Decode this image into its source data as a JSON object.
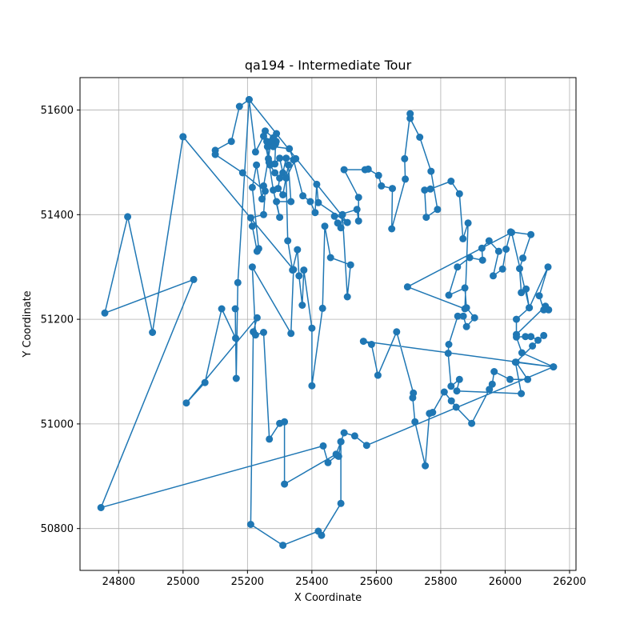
{
  "chart_data": {
    "type": "line",
    "title": "qa194 - Intermediate Tour",
    "xlabel": "X Coordinate",
    "ylabel": "Y Coordinate",
    "xlim": [
      24680,
      26220
    ],
    "ylim": [
      50720,
      51662
    ],
    "xticks": [
      24800,
      25000,
      25200,
      25400,
      25600,
      25800,
      26000,
      26200
    ],
    "yticks": [
      50800,
      51000,
      51200,
      51400,
      51600
    ],
    "grid": true,
    "color": "#1f77b4",
    "series": [
      {
        "marker": "circle",
        "points": [
          [
            25000,
            51549
          ],
          [
            24905,
            51175
          ],
          [
            24828,
            51396
          ],
          [
            24757,
            51212
          ],
          [
            25033,
            51276
          ],
          [
            24745,
            50840
          ],
          [
            25435,
            50958
          ],
          [
            25450,
            50926
          ],
          [
            25478,
            50940
          ],
          [
            25483,
            50938
          ],
          [
            25490,
            50966
          ],
          [
            25500,
            50983
          ],
          [
            25533,
            50977
          ],
          [
            25570,
            50959
          ],
          [
            26150,
            51109
          ],
          [
            26052,
            51136
          ],
          [
            26035,
            51166
          ],
          [
            26063,
            51167
          ],
          [
            26080,
            51167
          ],
          [
            26102,
            51160
          ],
          [
            26120,
            51169
          ],
          [
            26085,
            51149
          ],
          [
            26034,
            51118
          ],
          [
            26070,
            51085
          ],
          [
            26015,
            51085
          ],
          [
            25966,
            51100
          ],
          [
            25960,
            51076
          ],
          [
            25951,
            51066
          ],
          [
            25896,
            51001
          ],
          [
            25848,
            51032
          ],
          [
            25833,
            51044
          ],
          [
            25811,
            51061
          ],
          [
            25775,
            51022
          ],
          [
            25765,
            51020
          ],
          [
            25752,
            50920
          ],
          [
            25720,
            51004
          ],
          [
            25713,
            51050
          ],
          [
            25715,
            51059
          ],
          [
            25663,
            51176
          ],
          [
            25605,
            51093
          ],
          [
            25585,
            51152
          ],
          [
            25560,
            51158
          ],
          [
            26150,
            51109
          ],
          [
            26032,
            51118
          ],
          [
            26050,
            51058
          ],
          [
            25850,
            51063
          ],
          [
            25858,
            51085
          ],
          [
            25832,
            51072
          ],
          [
            25823,
            51135
          ],
          [
            25825,
            51152
          ],
          [
            25853,
            51206
          ],
          [
            25870,
            51206
          ],
          [
            25880,
            51186
          ],
          [
            25905,
            51203
          ],
          [
            25880,
            51222
          ],
          [
            25875,
            51260
          ],
          [
            25825,
            51246
          ],
          [
            25852,
            51300
          ],
          [
            25890,
            51318
          ],
          [
            25930,
            51313
          ],
          [
            25928,
            51336
          ],
          [
            25950,
            51350
          ],
          [
            25980,
            51330
          ],
          [
            25963,
            51283
          ],
          [
            25992,
            51296
          ],
          [
            26003,
            51334
          ],
          [
            26017,
            51367
          ],
          [
            26080,
            51362
          ],
          [
            26055,
            51317
          ],
          [
            26045,
            51297
          ],
          [
            26050,
            51251
          ],
          [
            26065,
            51258
          ],
          [
            26075,
            51222
          ],
          [
            26035,
            51200
          ],
          [
            26035,
            51171
          ],
          [
            26125,
            51225
          ],
          [
            26135,
            51218
          ],
          [
            26120,
            51218
          ],
          [
            26106,
            51245
          ],
          [
            26133,
            51300
          ],
          [
            26075,
            51222
          ],
          [
            26020,
            51366
          ],
          [
            25697,
            51262
          ],
          [
            25875,
            51220
          ],
          [
            25885,
            51384
          ],
          [
            25869,
            51354
          ],
          [
            25858,
            51440
          ],
          [
            25832,
            51464
          ],
          [
            25768,
            51449
          ],
          [
            25750,
            51447
          ],
          [
            25755,
            51395
          ],
          [
            25790,
            51410
          ],
          [
            25770,
            51483
          ],
          [
            25735,
            51548
          ],
          [
            25705,
            51584
          ],
          [
            25705,
            51593
          ],
          [
            25688,
            51507
          ],
          [
            25690,
            51468
          ],
          [
            25648,
            51373
          ],
          [
            25650,
            51450
          ],
          [
            25616,
            51455
          ],
          [
            25607,
            51475
          ],
          [
            25575,
            51487
          ],
          [
            25565,
            51486
          ],
          [
            25500,
            51486
          ],
          [
            25545,
            51433
          ],
          [
            25545,
            51388
          ],
          [
            25540,
            51410
          ],
          [
            25470,
            51397
          ],
          [
            25480,
            51384
          ],
          [
            25490,
            51375
          ],
          [
            25495,
            51400
          ],
          [
            25510,
            51243
          ],
          [
            25520,
            51304
          ],
          [
            25458,
            51318
          ],
          [
            25440,
            51378
          ],
          [
            25433,
            51221
          ],
          [
            25400,
            51073
          ],
          [
            25400,
            51183
          ],
          [
            25375,
            51294
          ],
          [
            25370,
            51227
          ],
          [
            25360,
            51283
          ],
          [
            25355,
            51333
          ],
          [
            25340,
            51294
          ],
          [
            25325,
            51350
          ],
          [
            25320,
            51470
          ],
          [
            25350,
            51507
          ],
          [
            25320,
            51508
          ],
          [
            25310,
            51480
          ],
          [
            25300,
            51508
          ],
          [
            25285,
            51497
          ],
          [
            25287,
            51535
          ],
          [
            25289,
            51540
          ],
          [
            25290,
            51555
          ],
          [
            25280,
            51547
          ],
          [
            25255,
            51560
          ],
          [
            25260,
            51540
          ],
          [
            25262,
            51530
          ],
          [
            25270,
            51495
          ],
          [
            25285,
            51480
          ],
          [
            25300,
            51470
          ],
          [
            25295,
            51450
          ],
          [
            25310,
            51438
          ],
          [
            25327,
            51495
          ],
          [
            25335,
            51425
          ],
          [
            25290,
            51425
          ],
          [
            25300,
            51395
          ],
          [
            25280,
            51447
          ],
          [
            25267,
            51500
          ],
          [
            25250,
            51550
          ],
          [
            25225,
            51520
          ],
          [
            25205,
            51620
          ],
          [
            25175,
            51607
          ],
          [
            25150,
            51540
          ],
          [
            25100,
            51523
          ],
          [
            25100,
            51515
          ],
          [
            25185,
            51480
          ],
          [
            25255,
            51445
          ],
          [
            25250,
            51400
          ],
          [
            25210,
            51394
          ],
          [
            25215,
            51378
          ],
          [
            25230,
            51330
          ],
          [
            25235,
            51335
          ],
          [
            25215,
            51452
          ],
          [
            25228,
            51495
          ],
          [
            25245,
            51430
          ],
          [
            25250,
            51455
          ],
          [
            25265,
            51507
          ],
          [
            25273,
            51540
          ],
          [
            25280,
            51530
          ],
          [
            25330,
            51526
          ],
          [
            25343,
            51505
          ],
          [
            25372,
            51436
          ],
          [
            25395,
            51425
          ],
          [
            25410,
            51404
          ],
          [
            25415,
            51458
          ],
          [
            25420,
            51423
          ],
          [
            25510,
            51385
          ],
          [
            25205,
            51620
          ],
          [
            25170,
            51270
          ],
          [
            25165,
            51087
          ],
          [
            25162,
            51220
          ],
          [
            25163,
            51164
          ],
          [
            25120,
            51220
          ],
          [
            25068,
            51079
          ],
          [
            25010,
            51040
          ],
          [
            25230,
            51203
          ],
          [
            25218,
            51176
          ],
          [
            25210,
            50808
          ],
          [
            25310,
            50768
          ],
          [
            25420,
            50795
          ],
          [
            25430,
            50787
          ],
          [
            25490,
            50848
          ],
          [
            25490,
            50966
          ],
          [
            25475,
            50942
          ],
          [
            25315,
            50885
          ],
          [
            25315,
            51004
          ],
          [
            25300,
            51001
          ],
          [
            25268,
            50971
          ],
          [
            25250,
            51175
          ],
          [
            25225,
            51170
          ],
          [
            25215,
            51300
          ],
          [
            25335,
            51173
          ],
          [
            25343,
            51295
          ],
          [
            25000,
            51549
          ]
        ]
      }
    ]
  }
}
